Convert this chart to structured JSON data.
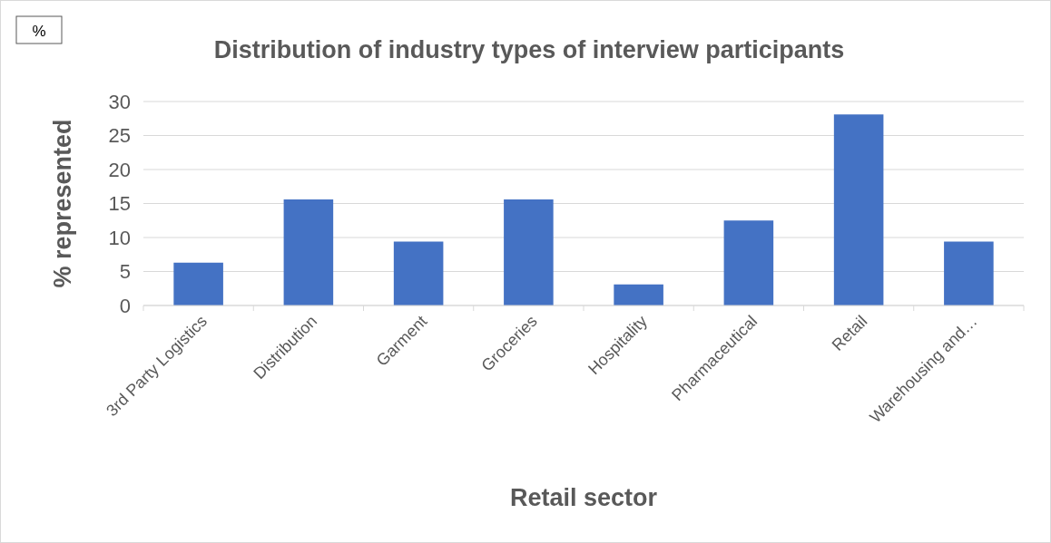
{
  "chart_data": {
    "type": "bar",
    "title": "Distribution of industry types of interview participants",
    "xlabel": "Retail sector",
    "ylabel": "% represented",
    "annotations": [
      "%"
    ],
    "categories": [
      "3rd Party Logistics",
      "Distribution",
      "Garment",
      "Groceries",
      "Hospitality",
      "Pharmaceutical",
      "Retail",
      "Warehousing and…"
    ],
    "values": [
      6.3,
      15.6,
      9.4,
      15.6,
      3.1,
      12.5,
      28.1,
      9.4
    ],
    "color": "#4472c4",
    "ylim": [
      0,
      30
    ],
    "yticks": [
      0,
      5,
      10,
      15,
      20,
      25,
      30
    ],
    "grid": "y"
  }
}
